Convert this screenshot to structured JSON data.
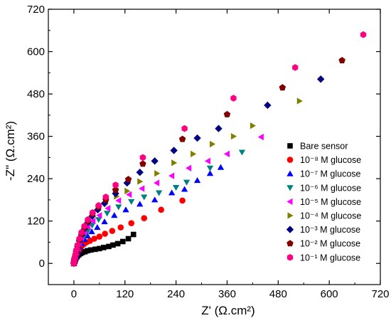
{
  "chart_data": {
    "type": "scatter",
    "xlabel": "Z' (Ω.cm²)",
    "ylabel": "-Z\" (Ω.cm²)",
    "xlim": [
      -60,
      720
    ],
    "ylim": [
      -60,
      720
    ],
    "xticks": [
      0,
      120,
      240,
      360,
      480,
      600,
      720
    ],
    "yticks": [
      0,
      120,
      240,
      360,
      480,
      600,
      720
    ],
    "xtick_labels": [
      "0",
      "120",
      "240",
      "360",
      "480",
      "600",
      "720"
    ],
    "ytick_labels": [
      "0",
      "120",
      "240",
      "360",
      "480",
      "600",
      "720"
    ],
    "legend_position": "lower-right",
    "grid": false,
    "series": [
      {
        "name": "Bare sensor",
        "marker": "square",
        "color": "#000000",
        "points": [
          [
            0,
            0
          ],
          [
            1,
            3
          ],
          [
            2,
            6
          ],
          [
            3,
            9
          ],
          [
            4,
            12
          ],
          [
            5,
            16
          ],
          [
            7,
            19
          ],
          [
            9,
            22
          ],
          [
            12,
            25
          ],
          [
            16,
            28
          ],
          [
            20,
            31
          ],
          [
            26,
            33
          ],
          [
            32,
            36
          ],
          [
            40,
            38
          ],
          [
            50,
            40
          ],
          [
            60,
            42
          ],
          [
            70,
            45
          ],
          [
            82,
            48
          ],
          [
            92,
            52
          ],
          [
            103,
            56
          ],
          [
            115,
            62
          ],
          [
            128,
            70
          ],
          [
            140,
            82
          ]
        ]
      },
      {
        "name": "10⁻⁸ M glucose",
        "marker": "circle",
        "color": "#ff0000",
        "points": [
          [
            0,
            0
          ],
          [
            1,
            4
          ],
          [
            2,
            8
          ],
          [
            3,
            12
          ],
          [
            4,
            18
          ],
          [
            6,
            24
          ],
          [
            9,
            32
          ],
          [
            13,
            40
          ],
          [
            18,
            48
          ],
          [
            24,
            55
          ],
          [
            30,
            60
          ],
          [
            38,
            64
          ],
          [
            48,
            70
          ],
          [
            60,
            76
          ],
          [
            73,
            84
          ],
          [
            90,
            92
          ],
          [
            110,
            102
          ],
          [
            135,
            114
          ],
          [
            165,
            128
          ],
          [
            205,
            152
          ],
          [
            255,
            178
          ]
        ]
      },
      {
        "name": "10⁻⁷ M glucose",
        "marker": "triangle-up",
        "color": "#0000ff",
        "points": [
          [
            0,
            0
          ],
          [
            1,
            5
          ],
          [
            2,
            10
          ],
          [
            4,
            16
          ],
          [
            6,
            24
          ],
          [
            9,
            34
          ],
          [
            13,
            46
          ],
          [
            18,
            56
          ],
          [
            25,
            68
          ],
          [
            32,
            78
          ],
          [
            42,
            90
          ],
          [
            55,
            102
          ],
          [
            72,
            118
          ],
          [
            95,
            136
          ],
          [
            122,
            152
          ],
          [
            155,
            168
          ],
          [
            190,
            180
          ],
          [
            230,
            200
          ],
          [
            260,
            210
          ],
          [
            290,
            235
          ],
          [
            320,
            255
          ],
          [
            345,
            272
          ]
        ]
      },
      {
        "name": "10⁻⁶ M glucose",
        "marker": "triangle-down",
        "color": "#008080",
        "points": [
          [
            0,
            0
          ],
          [
            1,
            5
          ],
          [
            2,
            11
          ],
          [
            4,
            18
          ],
          [
            6,
            28
          ],
          [
            9,
            40
          ],
          [
            13,
            52
          ],
          [
            18,
            64
          ],
          [
            25,
            78
          ],
          [
            33,
            92
          ],
          [
            43,
            108
          ],
          [
            58,
            124
          ],
          [
            78,
            142
          ],
          [
            105,
            160
          ],
          [
            135,
            175
          ],
          [
            165,
            188
          ],
          [
            200,
            200
          ],
          [
            240,
            215
          ],
          [
            265,
            230
          ],
          [
            320,
            270
          ],
          [
            395,
            315
          ]
        ]
      },
      {
        "name": "10⁻⁵ M glucose",
        "marker": "triangle-left",
        "color": "#ff00ff",
        "points": [
          [
            0,
            0
          ],
          [
            1,
            6
          ],
          [
            2,
            12
          ],
          [
            4,
            20
          ],
          [
            6,
            30
          ],
          [
            9,
            44
          ],
          [
            13,
            58
          ],
          [
            18,
            72
          ],
          [
            25,
            88
          ],
          [
            33,
            104
          ],
          [
            45,
            120
          ],
          [
            60,
            136
          ],
          [
            80,
            156
          ],
          [
            105,
            178
          ],
          [
            130,
            195
          ],
          [
            160,
            212
          ],
          [
            195,
            228
          ],
          [
            230,
            248
          ],
          [
            270,
            270
          ],
          [
            315,
            290
          ],
          [
            360,
            310
          ],
          [
            440,
            358
          ]
        ]
      },
      {
        "name": "10⁻⁴ M glucose",
        "marker": "triangle-right",
        "color": "#808000",
        "points": [
          [
            0,
            0
          ],
          [
            1,
            6
          ],
          [
            2,
            12
          ],
          [
            4,
            22
          ],
          [
            6,
            32
          ],
          [
            9,
            46
          ],
          [
            13,
            62
          ],
          [
            18,
            78
          ],
          [
            25,
            96
          ],
          [
            33,
            114
          ],
          [
            44,
            134
          ],
          [
            58,
            156
          ],
          [
            75,
            176
          ],
          [
            100,
            190
          ],
          [
            125,
            205
          ],
          [
            155,
            232
          ],
          [
            195,
            255
          ],
          [
            235,
            285
          ],
          [
            280,
            310
          ],
          [
            325,
            338
          ],
          [
            375,
            360
          ],
          [
            420,
            390
          ],
          [
            530,
            460
          ]
        ]
      },
      {
        "name": "10⁻³ M glucose",
        "marker": "diamond",
        "color": "#000080",
        "points": [
          [
            0,
            0
          ],
          [
            1,
            6
          ],
          [
            2,
            13
          ],
          [
            4,
            22
          ],
          [
            6,
            34
          ],
          [
            9,
            48
          ],
          [
            13,
            64
          ],
          [
            18,
            80
          ],
          [
            25,
            98
          ],
          [
            33,
            116
          ],
          [
            43,
            134
          ],
          [
            56,
            152
          ],
          [
            72,
            170
          ],
          [
            98,
            198
          ],
          [
            125,
            228
          ],
          [
            155,
            258
          ],
          [
            190,
            290
          ],
          [
            235,
            320
          ],
          [
            290,
            355
          ],
          [
            340,
            382
          ],
          [
            455,
            448
          ],
          [
            580,
            522
          ]
        ]
      },
      {
        "name": "10⁻² M glucose",
        "marker": "pentagon",
        "color": "#800000",
        "points": [
          [
            0,
            0
          ],
          [
            1,
            7
          ],
          [
            2,
            14
          ],
          [
            4,
            24
          ],
          [
            6,
            36
          ],
          [
            9,
            50
          ],
          [
            13,
            66
          ],
          [
            18,
            84
          ],
          [
            25,
            102
          ],
          [
            33,
            120
          ],
          [
            44,
            140
          ],
          [
            58,
            160
          ],
          [
            75,
            180
          ],
          [
            98,
            208
          ],
          [
            128,
            238
          ],
          [
            162,
            282
          ],
          [
            255,
            352
          ],
          [
            360,
            422
          ],
          [
            490,
            498
          ],
          [
            630,
            575
          ]
        ]
      },
      {
        "name": "10⁻¹ M glucose",
        "marker": "hexagon",
        "color": "#ff0080",
        "points": [
          [
            0,
            0
          ],
          [
            1,
            7
          ],
          [
            2,
            15
          ],
          [
            4,
            25
          ],
          [
            6,
            38
          ],
          [
            9,
            52
          ],
          [
            13,
            70
          ],
          [
            18,
            88
          ],
          [
            25,
            106
          ],
          [
            33,
            124
          ],
          [
            44,
            144
          ],
          [
            58,
            164
          ],
          [
            75,
            188
          ],
          [
            98,
            222
          ],
          [
            162,
            300
          ],
          [
            260,
            382
          ],
          [
            375,
            468
          ],
          [
            520,
            555
          ],
          [
            680,
            648
          ]
        ]
      }
    ]
  }
}
